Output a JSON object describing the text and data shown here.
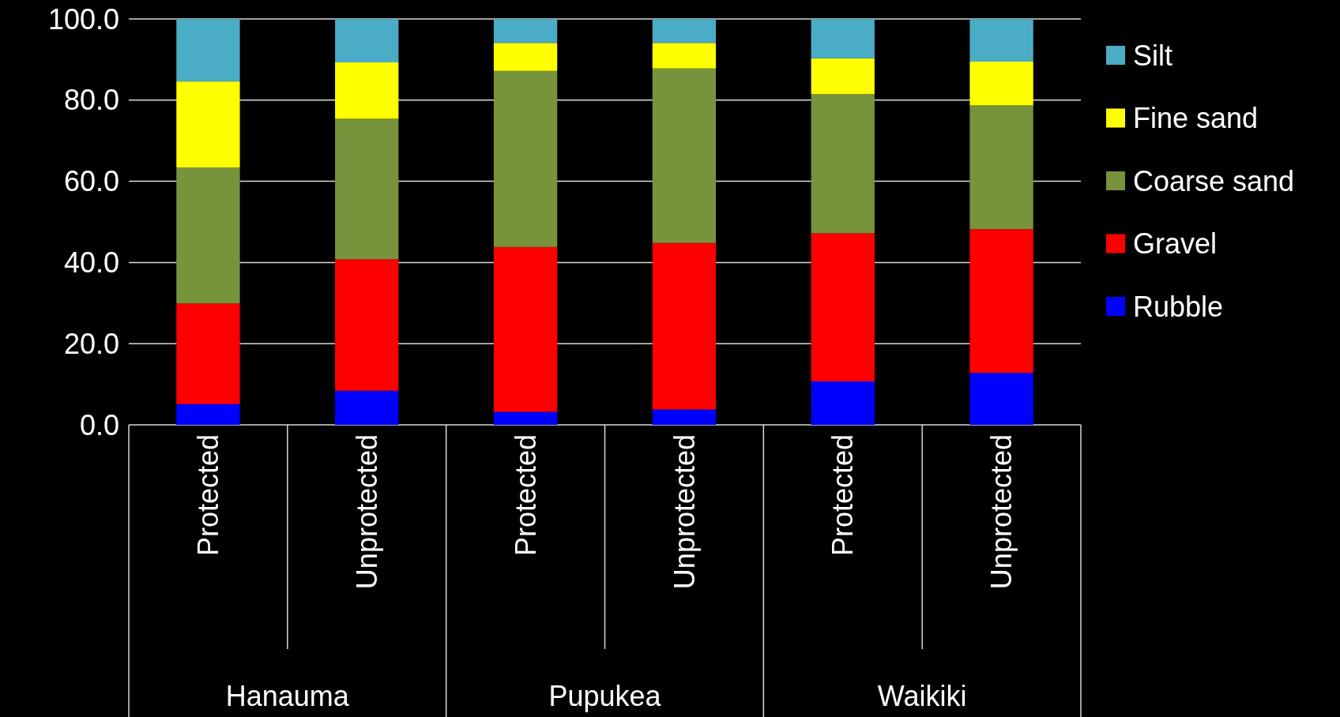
{
  "chart_data": {
    "type": "bar",
    "stacked": true,
    "categories": [
      "Protected",
      "Unprotected",
      "Protected",
      "Unprotected",
      "Protected",
      "Unprotected"
    ],
    "series": [
      {
        "name": "Rubble",
        "color": "#0000ff",
        "values": [
          5.1,
          8.4,
          3.2,
          3.8,
          10.7,
          12.8
        ]
      },
      {
        "name": "Gravel",
        "color": "#ff0000",
        "values": [
          24.8,
          32.4,
          40.6,
          41.0,
          36.5,
          35.4
        ]
      },
      {
        "name": "Coarse sand",
        "color": "#77933c",
        "values": [
          33.5,
          34.6,
          43.4,
          43.0,
          34.3,
          30.5
        ]
      },
      {
        "name": "Fine sand",
        "color": "#ffff00",
        "values": [
          21.2,
          13.9,
          6.9,
          6.3,
          8.8,
          10.8
        ]
      },
      {
        "name": "Silt",
        "color": "#4bacc6",
        "values": [
          15.4,
          10.7,
          5.9,
          5.9,
          9.7,
          10.5
        ]
      }
    ],
    "annotations": [
      "Hanauma",
      "Pupukea",
      "Waikiki"
    ],
    "ylim": [
      0,
      100
    ],
    "yticks": [
      {
        "value": 0,
        "label": "0.0"
      },
      {
        "value": 20,
        "label": "20.0"
      },
      {
        "value": 40,
        "label": "40.0"
      },
      {
        "value": 60,
        "label": "60.0"
      },
      {
        "value": 80,
        "label": "80.0"
      },
      {
        "value": 100,
        "label": "100.0"
      }
    ],
    "grid": "y",
    "legend": "right"
  }
}
